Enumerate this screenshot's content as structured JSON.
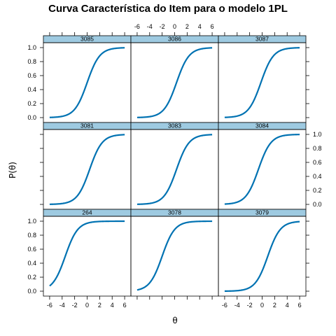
{
  "chart_data": {
    "type": "line",
    "title": "Curva Característica do Item para o modelo 1PL",
    "xlabel": "θ",
    "ylabel": "P(θ)",
    "xlim": [
      -7,
      7
    ],
    "ylim": [
      -0.07,
      1.07
    ],
    "x_ticks": [
      -6,
      -4,
      -2,
      0,
      2,
      4,
      6
    ],
    "y_ticks": [
      0.0,
      0.2,
      0.4,
      0.6,
      0.8,
      1.0
    ],
    "grid": false,
    "layout": "3x3 trellis",
    "line_color": "#0072B2",
    "strip_color": "#9ECAE1",
    "x_range": [
      -6,
      6
    ],
    "panels": [
      {
        "name": "3085",
        "difficulty": 0.0
      },
      {
        "name": "3086",
        "difficulty": 0.3
      },
      {
        "name": "3087",
        "difficulty": -0.2
      },
      {
        "name": "3081",
        "difficulty": 0.4
      },
      {
        "name": "3083",
        "difficulty": 0.3
      },
      {
        "name": "3084",
        "difficulty": -0.6
      },
      {
        "name": "264",
        "difficulty": -3.5
      },
      {
        "name": "3078",
        "difficulty": -2.0
      },
      {
        "name": "3079",
        "difficulty": 0.9
      }
    ]
  }
}
